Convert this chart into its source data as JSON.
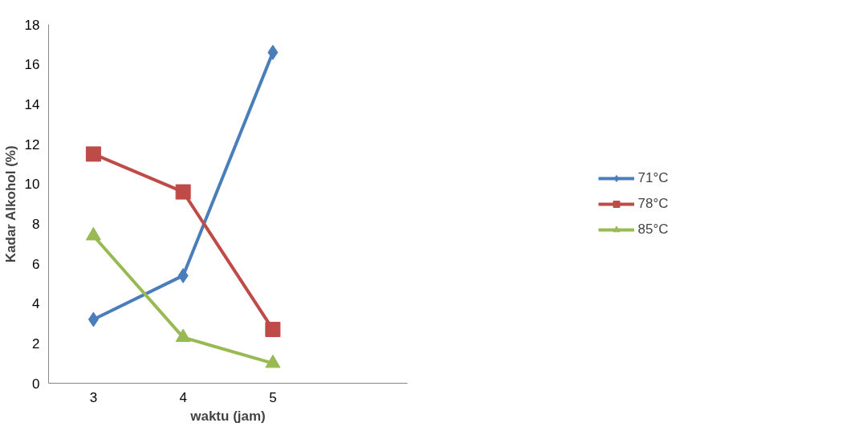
{
  "chart_data": {
    "type": "line",
    "xlabel": "waktu (jam)",
    "ylabel": "Kadar Alkohol (%)",
    "categories": [
      "3",
      "4",
      "5",
      null
    ],
    "ylim": [
      0,
      18
    ],
    "yticks": [
      0,
      2,
      4,
      6,
      8,
      10,
      12,
      14,
      16,
      18
    ],
    "grid": false,
    "legend": "right",
    "series": [
      {
        "name": "71°C",
        "color": "#4a7ebb",
        "marker": "diamond",
        "values": [
          3.2,
          5.4,
          16.6,
          null
        ]
      },
      {
        "name": "78°C",
        "color": "#be4b48",
        "marker": "square",
        "values": [
          11.5,
          9.6,
          2.7,
          null
        ]
      },
      {
        "name": "85°C",
        "color": "#98b954",
        "marker": "triangle",
        "values": [
          7.4,
          2.3,
          1.0,
          null
        ]
      }
    ]
  }
}
